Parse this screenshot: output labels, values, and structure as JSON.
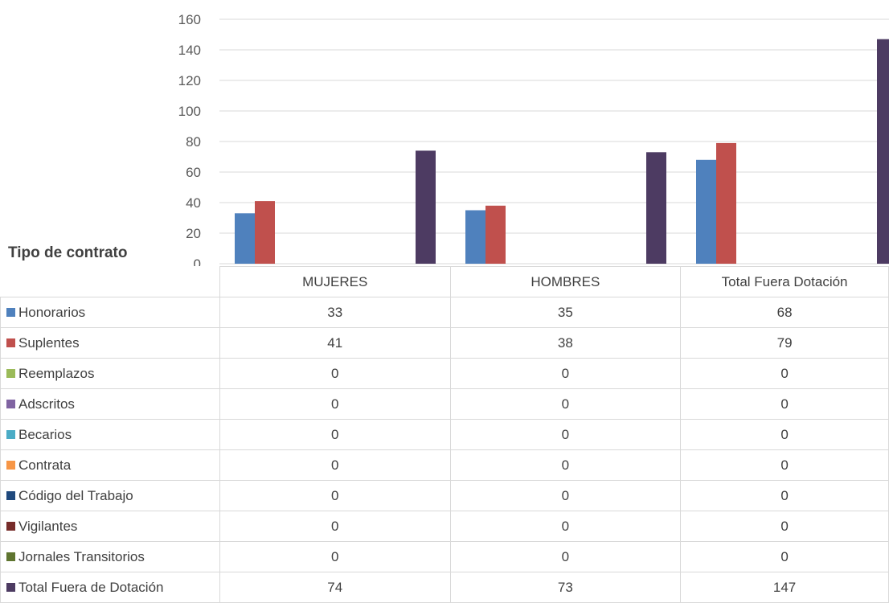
{
  "chart_data": {
    "type": "bar",
    "title": "Tipo de contrato",
    "categories": [
      "MUJERES",
      "HOMBRES",
      "Total Fuera Dotación"
    ],
    "ylim": [
      0,
      160
    ],
    "yticks": [
      0,
      20,
      40,
      60,
      80,
      100,
      120,
      140,
      160
    ],
    "grid": true,
    "legend": "data-table",
    "series": [
      {
        "name": "Honorarios",
        "color": "#4f81bd",
        "values": [
          33,
          35,
          68
        ]
      },
      {
        "name": "Suplentes",
        "color": "#c0504d",
        "values": [
          41,
          38,
          79
        ]
      },
      {
        "name": "Reemplazos",
        "color": "#9bbb59",
        "values": [
          0,
          0,
          0
        ]
      },
      {
        "name": "Adscritos",
        "color": "#8064a2",
        "values": [
          0,
          0,
          0
        ]
      },
      {
        "name": "Becarios",
        "color": "#4bacc6",
        "values": [
          0,
          0,
          0
        ]
      },
      {
        "name": "Contrata",
        "color": "#f79646",
        "values": [
          0,
          0,
          0
        ]
      },
      {
        "name": "Código del Trabajo",
        "color": "#1f497d",
        "values": [
          0,
          0,
          0
        ]
      },
      {
        "name": "Vigilantes",
        "color": "#772c2a",
        "values": [
          0,
          0,
          0
        ]
      },
      {
        "name": "Jornales Transitorios",
        "color": "#5f7530",
        "values": [
          0,
          0,
          0
        ]
      },
      {
        "name": "Total Fuera de Dotación",
        "color": "#4d3b62",
        "values": [
          74,
          73,
          147
        ]
      }
    ]
  }
}
